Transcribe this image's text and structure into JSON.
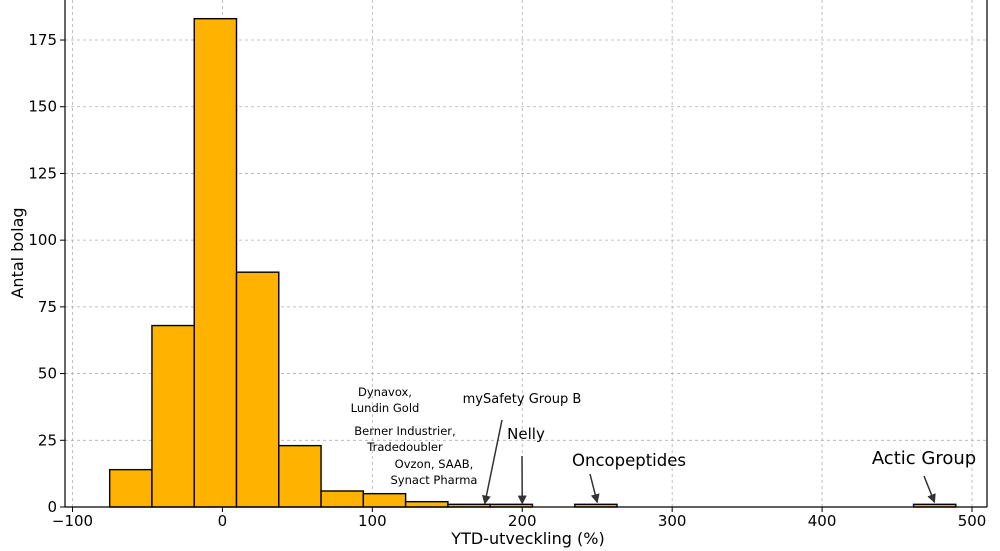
{
  "chart_data": {
    "type": "bar",
    "title": "",
    "xlabel": "YTD-utveckling (%)",
    "ylabel": "Antal bolag",
    "xlim": [
      -105,
      510
    ],
    "ylim": [
      0,
      190
    ],
    "bin_width": 28.2,
    "bins": [
      {
        "x0": -75.2,
        "x1": -47.0,
        "count": 14
      },
      {
        "x0": -47.0,
        "x1": -18.8,
        "count": 68
      },
      {
        "x0": -18.8,
        "x1": 9.4,
        "count": 183
      },
      {
        "x0": 9.4,
        "x1": 37.6,
        "count": 88
      },
      {
        "x0": 37.6,
        "x1": 65.8,
        "count": 23
      },
      {
        "x0": 65.8,
        "x1": 94.0,
        "count": 6
      },
      {
        "x0": 94.0,
        "x1": 122.2,
        "count": 5
      },
      {
        "x0": 122.2,
        "x1": 150.4,
        "count": 2
      },
      {
        "x0": 150.4,
        "x1": 178.6,
        "count": 1
      },
      {
        "x0": 178.6,
        "x1": 206.8,
        "count": 1
      },
      {
        "x0": 235.0,
        "x1": 263.2,
        "count": 1
      },
      {
        "x0": 461.0,
        "x1": 489.2,
        "count": 1
      }
    ],
    "x_ticks": [
      {
        "value": -100,
        "label": "−100"
      },
      {
        "value": 0,
        "label": "0"
      },
      {
        "value": 100,
        "label": "100"
      },
      {
        "value": 200,
        "label": "200"
      },
      {
        "value": 300,
        "label": "300"
      },
      {
        "value": 400,
        "label": "400"
      },
      {
        "value": 500,
        "label": "500"
      }
    ],
    "y_ticks": [
      {
        "value": 0,
        "label": "0"
      },
      {
        "value": 25,
        "label": "25"
      },
      {
        "value": 50,
        "label": "50"
      },
      {
        "value": 75,
        "label": "75"
      },
      {
        "value": 100,
        "label": "100"
      },
      {
        "value": 125,
        "label": "125"
      },
      {
        "value": 150,
        "label": "150"
      },
      {
        "value": 175,
        "label": "175"
      }
    ],
    "grid": true,
    "colors": {
      "bar_fill": "#FFB300",
      "bar_edge": "#000000"
    },
    "annotations": [
      {
        "lines": [
          "Dynavox,",
          "Lundin Gold"
        ],
        "size": "small"
      },
      {
        "lines": [
          "Berner Industrier,",
          "Tradedoubler"
        ],
        "size": "small"
      },
      {
        "lines": [
          "Ovzon, SAAB,",
          "Synact Pharma"
        ],
        "size": "small"
      },
      {
        "lines": [
          "mySafety Group B"
        ],
        "size": "medium",
        "arrow_to": {
          "x": 175,
          "y": 0.5
        }
      },
      {
        "lines": [
          "Nelly"
        ],
        "size": "large",
        "arrow_to": {
          "x": 200,
          "y": 0.5
        }
      },
      {
        "lines": [
          "Oncopeptides"
        ],
        "size": "large",
        "arrow_to": {
          "x": 250,
          "y": 1
        }
      },
      {
        "lines": [
          "Actic Group"
        ],
        "size": "xlarge",
        "arrow_to": {
          "x": 475,
          "y": 1
        }
      }
    ]
  }
}
